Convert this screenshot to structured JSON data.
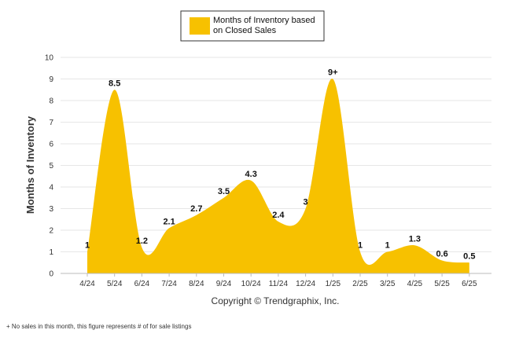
{
  "chart_data": {
    "type": "area",
    "title": "",
    "ylabel": "Months of Inventory",
    "xlabel": "",
    "ylim": [
      0,
      10
    ],
    "yticks": [
      0,
      1,
      2,
      3,
      4,
      5,
      6,
      7,
      8,
      9,
      10
    ],
    "grid": true,
    "categories": [
      "4/24",
      "5/24",
      "6/24",
      "7/24",
      "8/24",
      "9/24",
      "10/24",
      "11/24",
      "12/24",
      "1/25",
      "2/25",
      "3/25",
      "4/25",
      "5/25",
      "6/25"
    ],
    "series": [
      {
        "name": "Months of Inventory based on Closed Sales",
        "values": [
          1,
          8.5,
          1.2,
          2.1,
          2.7,
          3.5,
          4.3,
          2.4,
          3,
          9,
          1,
          1,
          1.3,
          0.6,
          0.5
        ],
        "data_labels": [
          "1",
          "8.5",
          "1.2",
          "2.1",
          "2.7",
          "3.5",
          "4.3",
          "2.4",
          "3",
          "9+",
          "1",
          "1",
          "1.3",
          "0.6",
          "0.5"
        ],
        "color": "#F7C100"
      }
    ],
    "legend": {
      "position": "top-center",
      "line1": "Months of Inventory based",
      "line2": "on Closed Sales"
    },
    "copyright": "Copyright © Trendgraphix, Inc.",
    "footnote": "+  No sales in this month, this figure represents # of for sale listings"
  }
}
